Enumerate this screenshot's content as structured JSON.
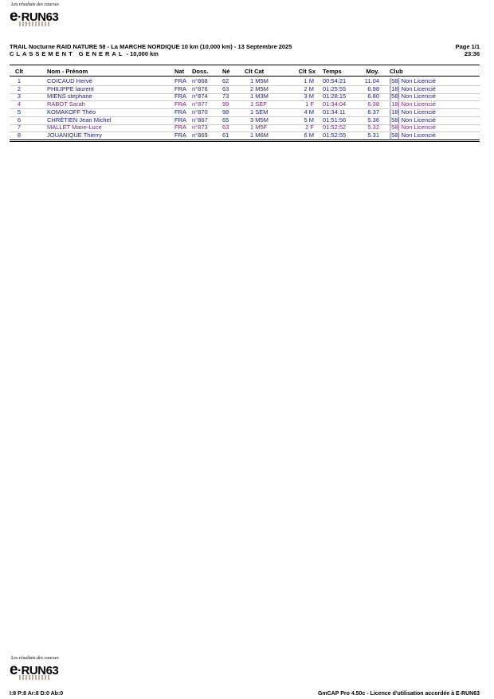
{
  "logo": {
    "tagline": "Les résultats des courses",
    "brand": "e-RUN63"
  },
  "header": {
    "title": "TRAIL Nocturne RAID NATURE 58 - La MARCHE NORDIQUE  10 km (10,000 km) - 13 Septembre 2025",
    "subtitle_spaced": "CLASSEMENT GENERAL",
    "subtitle_rest": " - 10,000 km",
    "page": "Page 1/1",
    "time": "23:36"
  },
  "table": {
    "columns": [
      "Clt",
      "Nom - Prénom",
      "Nat",
      "Doss.",
      "Né",
      "Clt Cat",
      "Clt Sx",
      "Temps",
      "Moy.",
      "Club"
    ],
    "rows": [
      {
        "clt": "1",
        "name": "COICAUD Hervé",
        "nat": "FRA",
        "doss": "n°868",
        "ne": "62",
        "cat": "1 M5M",
        "sx": "1 M",
        "temps": "00:54:21",
        "moy": "11.04",
        "club": "[58] Non Licencié",
        "sex": "M"
      },
      {
        "clt": "2",
        "name": "PHILIPPE laurent",
        "nat": "FRA",
        "doss": "n°876",
        "ne": "63",
        "cat": "2 M5M",
        "sx": "2 M",
        "temps": "01:25:55",
        "moy": "6.98",
        "club": "[18] Non Licencié",
        "sex": "M"
      },
      {
        "clt": "3",
        "name": "MIENS stephane",
        "nat": "FRA",
        "doss": "n°874",
        "ne": "73",
        "cat": "1 M3M",
        "sx": "3 M",
        "temps": "01:28:15",
        "moy": "6.80",
        "club": "[58] Non Licencié",
        "sex": "M"
      },
      {
        "clt": "4",
        "name": "RABOT Sarah",
        "nat": "FRA",
        "doss": "n°877",
        "ne": "99",
        "cat": "1 SEF",
        "sx": "1 F",
        "temps": "01:34:04",
        "moy": "6.38",
        "club": "[18] Non Licencié",
        "sex": "F"
      },
      {
        "clt": "5",
        "name": "KOMAKOFF Théo",
        "nat": "FRA",
        "doss": "n°870",
        "ne": "98",
        "cat": "1 SEM",
        "sx": "4 M",
        "temps": "01:34:11",
        "moy": "6.37",
        "club": "[18] Non Licencié",
        "sex": "M"
      },
      {
        "clt": "6",
        "name": "CHRÉTIEN Jean Michel",
        "nat": "FRA",
        "doss": "n°867",
        "ne": "65",
        "cat": "3 M5M",
        "sx": "5 M",
        "temps": "01:51:56",
        "moy": "5.36",
        "club": "[58] Non Licencié",
        "sex": "M"
      },
      {
        "clt": "7",
        "name": "MALLET Marie-Luce",
        "nat": "FRA",
        "doss": "n°873",
        "ne": "63",
        "cat": "1 M5F",
        "sx": "2 F",
        "temps": "01:52:52",
        "moy": "5.32",
        "club": "[58] Non Licencié",
        "sex": "F"
      },
      {
        "clt": "8",
        "name": "JOUANIQUE Thierry",
        "nat": "FRA",
        "doss": "n°869",
        "ne": "61",
        "cat": "1 M6M",
        "sx": "6 M",
        "temps": "01:52:55",
        "moy": "5.31",
        "club": "[58] Non Licencié",
        "sex": "M"
      }
    ]
  },
  "colors": {
    "male": "#1c1c7a",
    "female": "#7d1f7d"
  },
  "footer": {
    "stats": "I:8 P:8 Ar:8 D:0 Ab:0",
    "license": "GmCAP Pro 4.50c - Licence d'utilisation accordée à E-RUN63"
  }
}
